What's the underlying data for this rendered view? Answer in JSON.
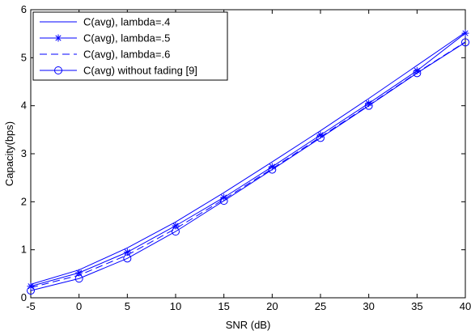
{
  "chart_data": {
    "type": "line",
    "title": "",
    "xlabel": "SNR (dB)",
    "ylabel": "Capacity(bps)",
    "xlim": [
      -5,
      40
    ],
    "ylim": [
      0,
      6
    ],
    "x": [
      -5,
      0,
      5,
      10,
      15,
      20,
      25,
      30,
      35,
      40
    ],
    "x_ticks": [
      "-5",
      "0",
      "5",
      "10",
      "15",
      "20",
      "25",
      "30",
      "35",
      "40"
    ],
    "y_ticks": [
      "0",
      "1",
      "2",
      "3",
      "4",
      "5",
      "6"
    ],
    "grid": false,
    "legend_position": "top-left",
    "line_color": "#0000ff",
    "series": [
      {
        "name": "C(avg), lambda=.4",
        "line_style": "solid",
        "marker": "none",
        "values": [
          0.28,
          0.58,
          1.04,
          1.58,
          2.19,
          2.83,
          3.48,
          4.15,
          4.84,
          5.53
        ]
      },
      {
        "name": "C(avg), lambda=.5",
        "line_style": "solid",
        "marker": "star",
        "values": [
          0.24,
          0.52,
          0.95,
          1.5,
          2.09,
          2.73,
          3.39,
          4.05,
          4.73,
          5.51
        ]
      },
      {
        "name": "C(avg), lambda=.6",
        "line_style": "dashed",
        "marker": "none",
        "values": [
          0.21,
          0.47,
          0.89,
          1.44,
          2.05,
          2.69,
          3.35,
          4.01,
          4.69,
          5.33
        ]
      },
      {
        "name": "C(avg) without fading [9]",
        "line_style": "solid",
        "marker": "circle",
        "values": [
          0.15,
          0.4,
          0.82,
          1.38,
          2.02,
          2.67,
          3.33,
          4.0,
          4.68,
          5.32
        ]
      }
    ]
  }
}
